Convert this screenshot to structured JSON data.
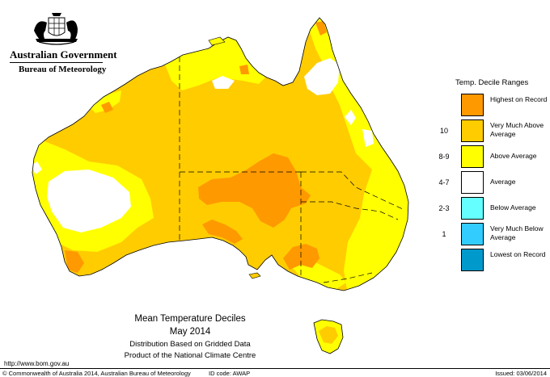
{
  "header": {
    "government": "Australian Government",
    "bureau": "Bureau of Meteorology"
  },
  "titles": {
    "title": "Mean Temperature Deciles",
    "period": "May 2014",
    "line3": "Distribution Based on Gridded Data",
    "line4": "Product of the National Climate Centre"
  },
  "footer": {
    "url": "http://www.bom.gov.au",
    "copyright": "© Commonwealth of Australia 2014, Australian Bureau of Meteorology",
    "id_code": "ID code: AWAP",
    "issued": "Issued: 03/06/2014"
  },
  "legend": {
    "title": "Temp. Decile Ranges",
    "items": [
      {
        "range": "",
        "label": "Highest on Record",
        "color": "#ff9900"
      },
      {
        "range": "10",
        "label": "Very Much Above Average",
        "color": "#ffcc00"
      },
      {
        "range": "8-9",
        "label": "Above Average",
        "color": "#ffff00"
      },
      {
        "range": "4-7",
        "label": "Average",
        "color": "#ffffff"
      },
      {
        "range": "2-3",
        "label": "Below Average",
        "color": "#66ffff"
      },
      {
        "range": "1",
        "label": "Very Much Below Average",
        "color": "#33ccff"
      },
      {
        "range": "",
        "label": "Lowest on Record",
        "color": "#0099cc"
      }
    ]
  },
  "map_colors": {
    "highest": "#ff9900",
    "very_much_above": "#ffcc00",
    "above": "#ffff00",
    "average": "#ffffff",
    "outline": "#000000"
  },
  "icons": {
    "logo": "commonwealth-coat-of-arms"
  }
}
